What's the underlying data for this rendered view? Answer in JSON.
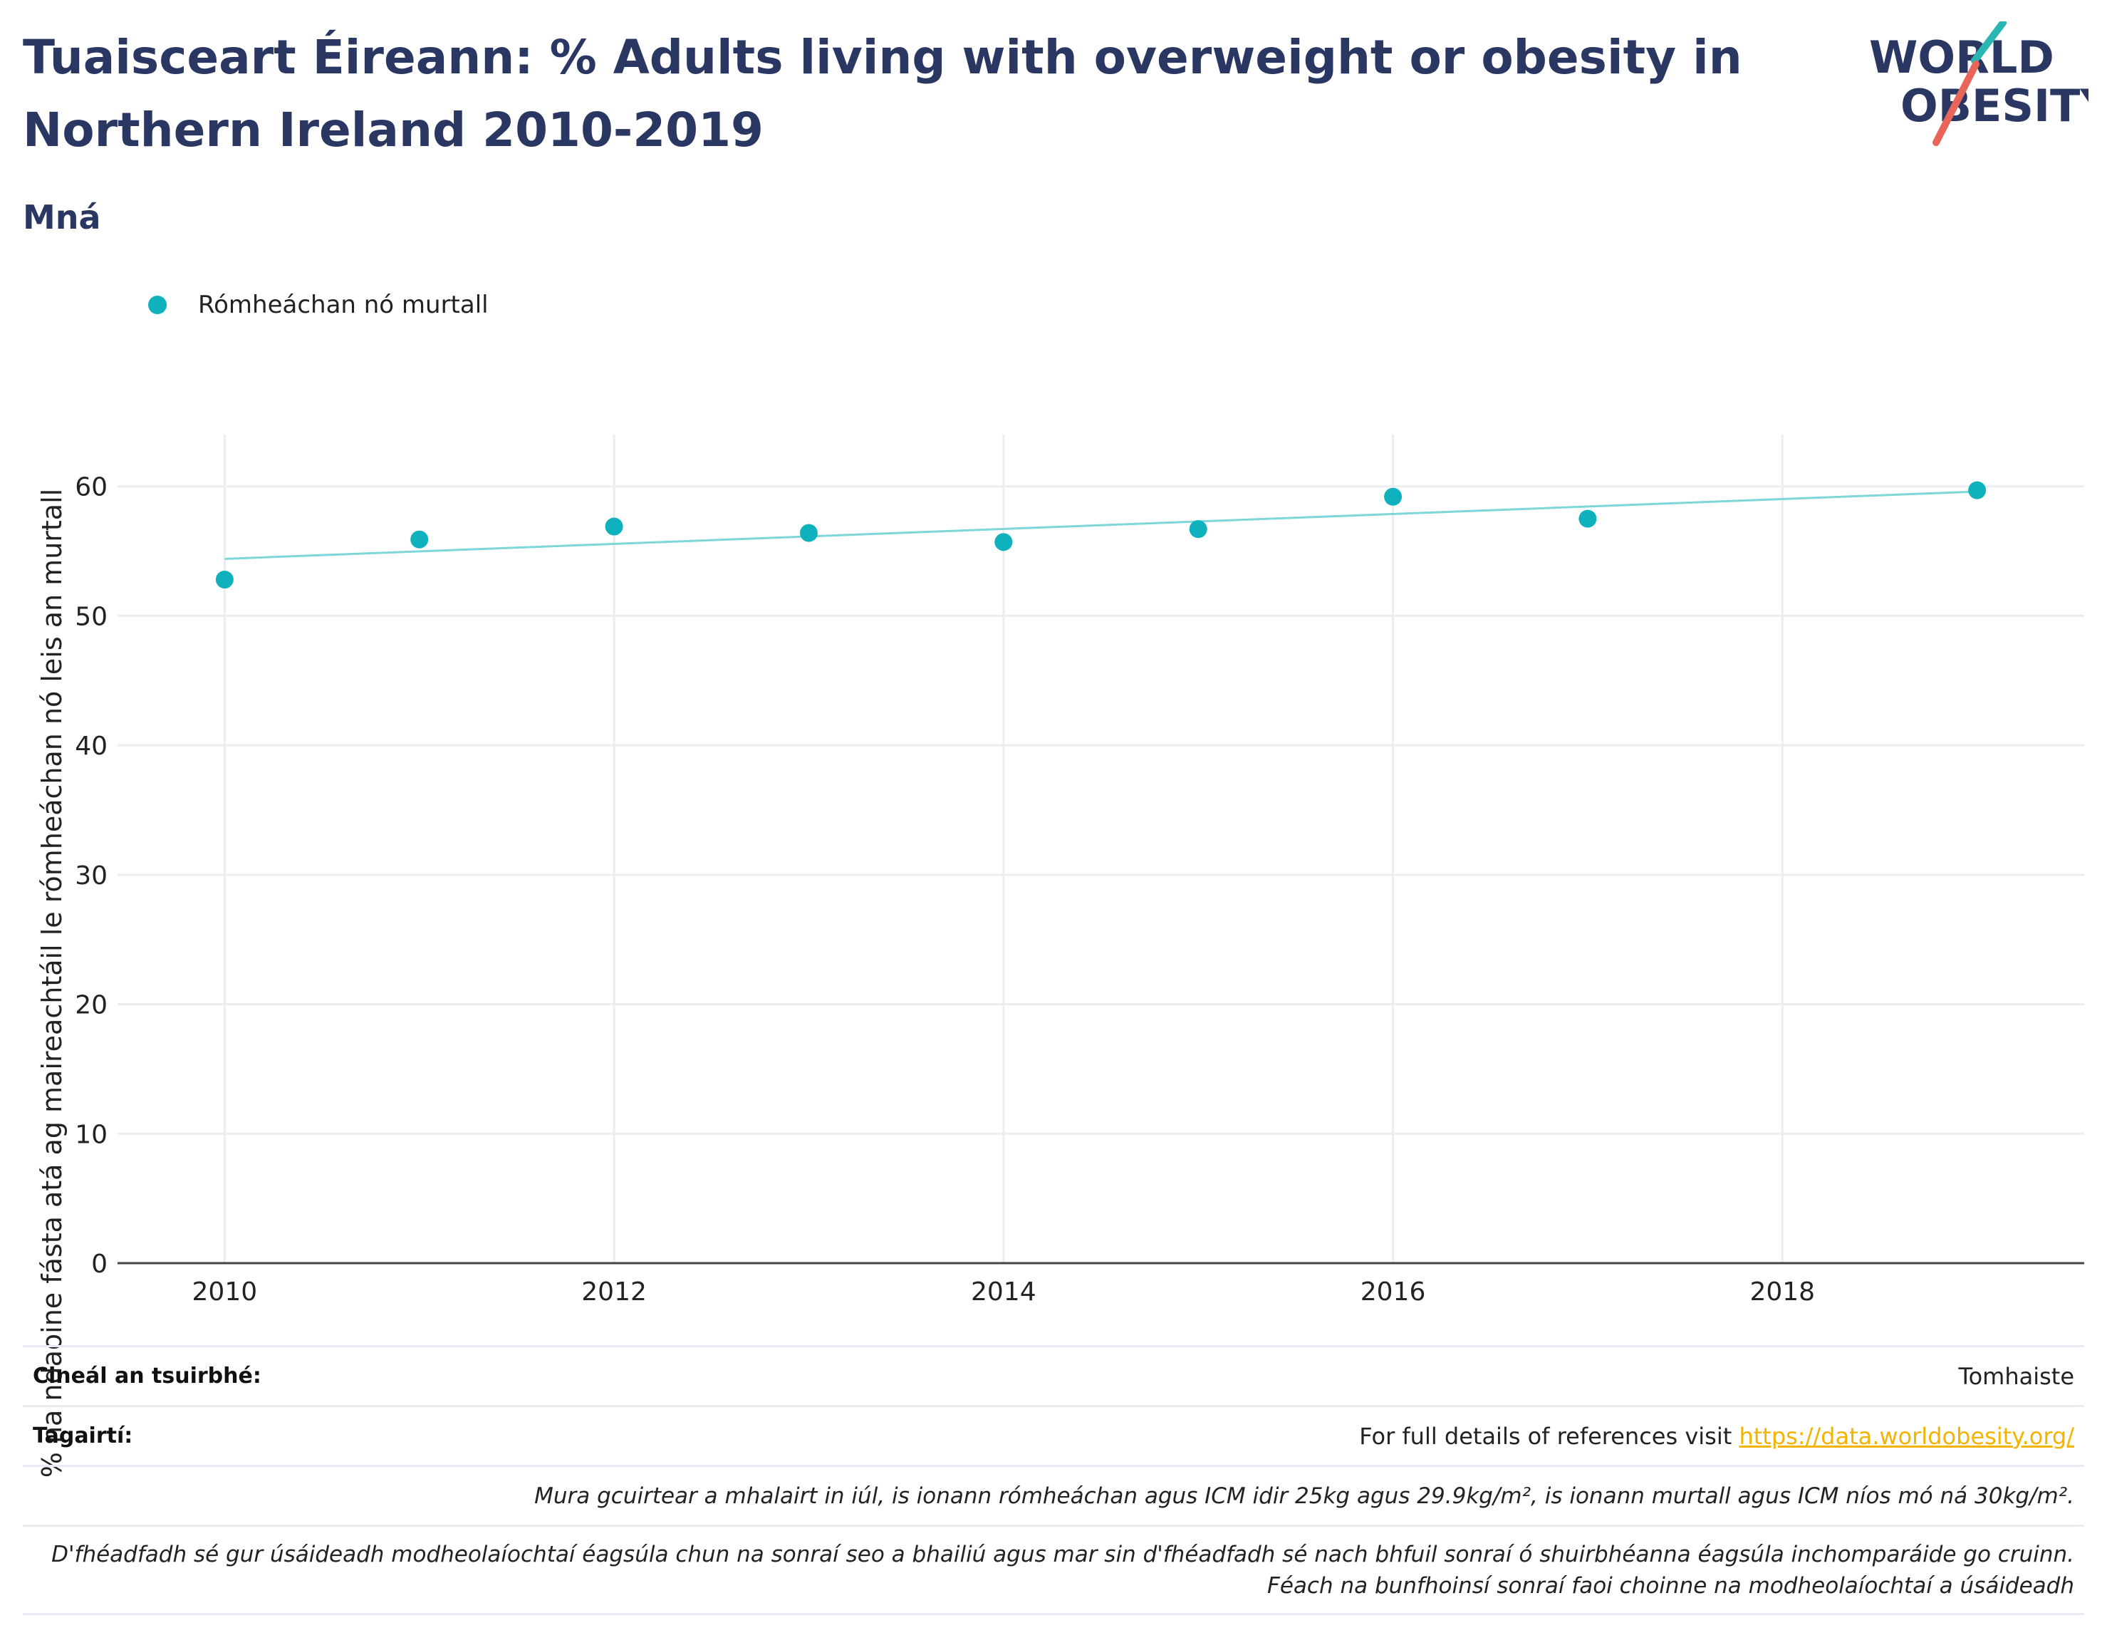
{
  "header": {
    "title_line1": "Tuaisceart Éireann: % Adults living with overweight or obesity in",
    "title_line2": "Northern Ireland 2010-2019",
    "subtitle": "Mná"
  },
  "logo": {
    "line1": "WORLD",
    "line2": "OBESITY",
    "accent_teal": "#2ab7b4",
    "accent_red": "#e8655a",
    "text_color": "#2b3763"
  },
  "legend": {
    "label": "Rómheáchan nó murtall",
    "color": "#0fb1bd"
  },
  "chart_data": {
    "type": "scatter",
    "title": "Tuaisceart Éireann: % Adults living with overweight or obesity in Northern Ireland 2010-2019",
    "subtitle": "Mná",
    "ylabel": "% na ndaoine fásta atá ag maireachtáil le rómheáchan nó leis an murtall",
    "xlabel": "",
    "xlim": [
      2009.45,
      2019.55
    ],
    "ylim": [
      0,
      64
    ],
    "xticks": [
      2010,
      2012,
      2014,
      2016,
      2018
    ],
    "yticks": [
      0,
      10,
      20,
      30,
      40,
      50,
      60
    ],
    "grid": true,
    "legend_position": "top-left",
    "series": [
      {
        "name": "Rómheáchan nó murtall",
        "color": "#0fb1bd",
        "x": [
          2010,
          2011,
          2012,
          2013,
          2014,
          2015,
          2016,
          2017,
          2019
        ],
        "y": [
          52.8,
          55.9,
          56.9,
          56.4,
          55.7,
          56.7,
          59.2,
          57.5,
          59.7
        ]
      }
    ],
    "trendline": {
      "color": "#7fd6d8",
      "x": [
        2010,
        2019
      ],
      "y": [
        54.4,
        59.6
      ]
    }
  },
  "footer": {
    "survey_key": "Cineál an tsuirbhé:",
    "survey_value": "Tomhaiste",
    "refs_key": "Tagairtí:",
    "refs_text": "For full details of references visit ",
    "refs_link": "https://data.worldobesity.org/",
    "note1": "Mura gcuirtear a mhalairt in iúl, is ionann rómheáchan agus ICM idir 25kg agus 29.9kg/m², is ionann murtall agus ICM níos mó ná 30kg/m².",
    "note2_line1": "D'fhéadfadh sé gur úsáideadh modheolaíochtaí éagsúla chun na sonraí seo a bhailiú agus mar sin d'fhéadfadh sé nach bhfuil sonraí ó shuirbhéanna éagsúla inchomparáide go cruinn.",
    "note2_line2": "Féach na bunfhoinsí sonraí faoi choinne na modheolaíochtaí a úsáideadh"
  }
}
